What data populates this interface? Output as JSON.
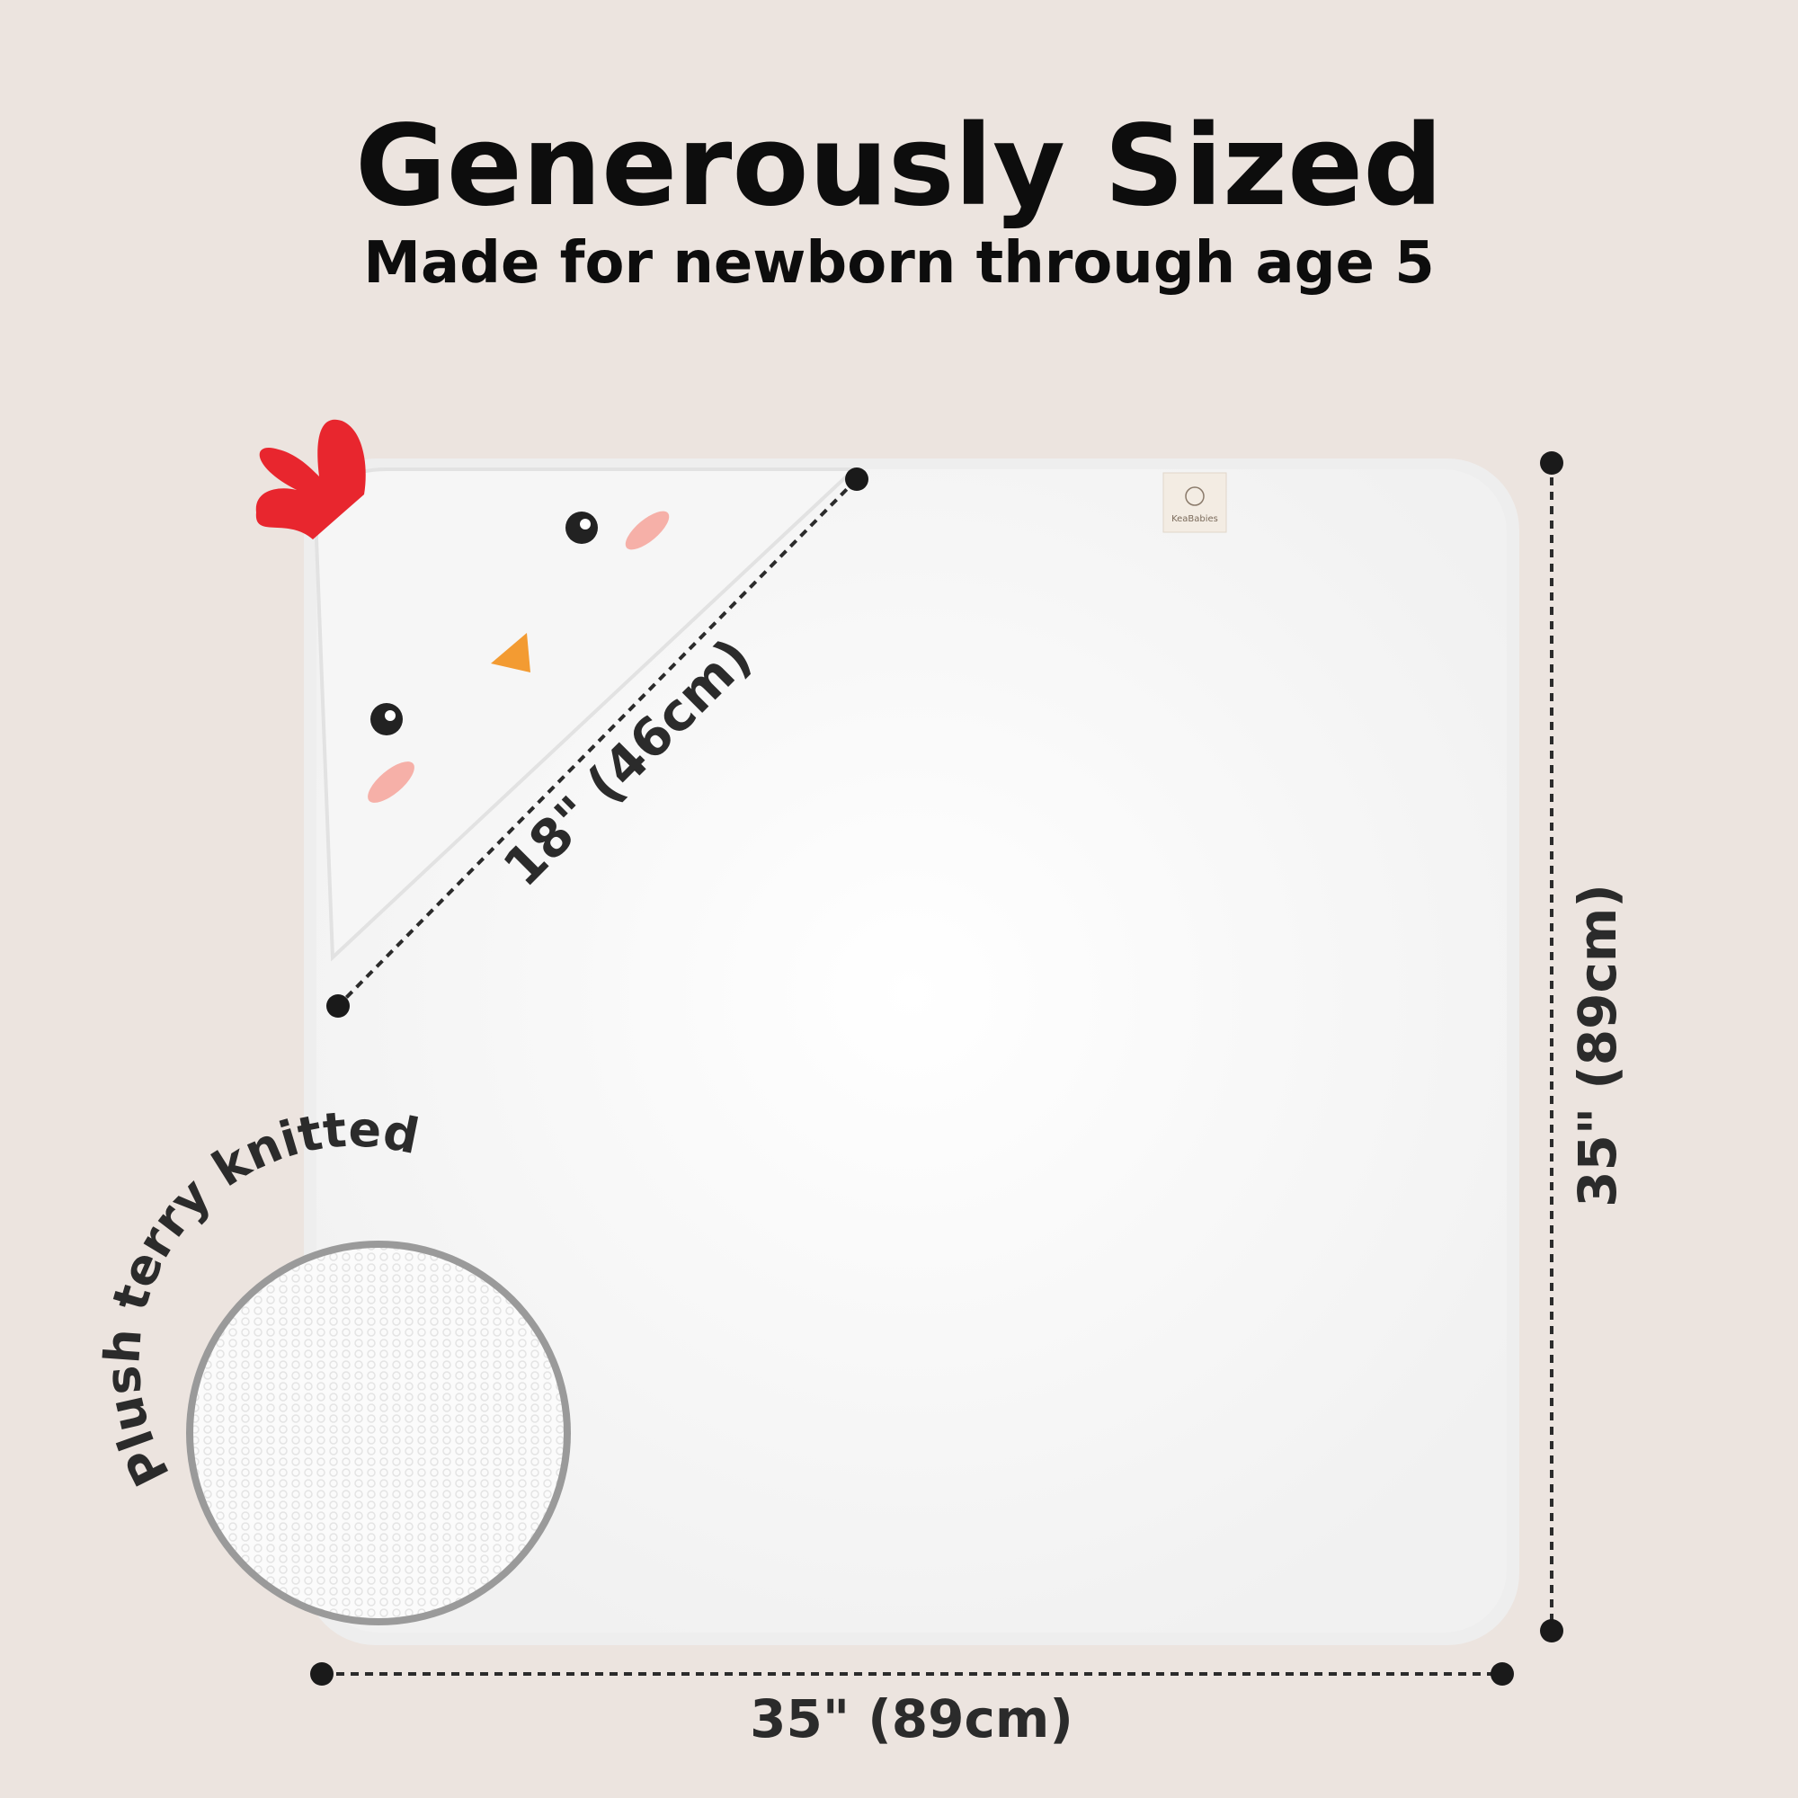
{
  "header": {
    "title": "Generously Sized",
    "subtitle": "Made for newborn through age 5"
  },
  "dimensions": {
    "hood": "18\" (46cm)",
    "height": "35\" (89cm)",
    "width": "35\" (89cm)"
  },
  "feature": "Plush terry knitted",
  "brand": "KeaBabies"
}
